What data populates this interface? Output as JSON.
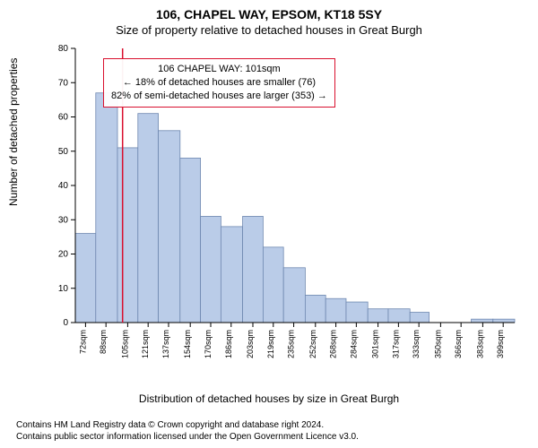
{
  "title_main": "106, CHAPEL WAY, EPSOM, KT18 5SY",
  "title_sub": "Size of property relative to detached houses in Great Burgh",
  "y_axis_label": "Number of detached properties",
  "x_axis_label": "Distribution of detached houses by size in Great Burgh",
  "footer_line1": "Contains HM Land Registry data © Crown copyright and database right 2024.",
  "footer_line2": "Contains public sector information licensed under the Open Government Licence v3.0.",
  "annotation": {
    "line1": "106 CHAPEL WAY: 101sqm",
    "line2": "← 18% of detached houses are smaller (76)",
    "line3": "82% of semi-detached houses are larger (353) →",
    "border_color": "#d9102e"
  },
  "reference_line": {
    "x_value": 101,
    "color": "#d9102e"
  },
  "chart": {
    "type": "histogram",
    "background_color": "#ffffff",
    "bar_fill": "#bacce8",
    "bar_stroke": "#6f88b0",
    "axis_color": "#000000",
    "tick_fontsize": 10,
    "x_tick_fontsize": 9,
    "xlim": [
      64,
      408
    ],
    "ylim": [
      0,
      80
    ],
    "y_ticks": [
      0,
      10,
      20,
      30,
      40,
      50,
      60,
      70,
      80
    ],
    "x_ticks": [
      72,
      88,
      105,
      121,
      137,
      154,
      170,
      186,
      203,
      219,
      235,
      252,
      268,
      284,
      301,
      317,
      333,
      350,
      366,
      383,
      399
    ],
    "x_tick_labels": [
      "72sqm",
      "88sqm",
      "105sqm",
      "121sqm",
      "137sqm",
      "154sqm",
      "170sqm",
      "186sqm",
      "203sqm",
      "219sqm",
      "235sqm",
      "252sqm",
      "268sqm",
      "284sqm",
      "301sqm",
      "317sqm",
      "333sqm",
      "350sqm",
      "366sqm",
      "383sqm",
      "399sqm"
    ],
    "bars": [
      {
        "x0": 64,
        "x1": 80,
        "y": 26
      },
      {
        "x0": 80,
        "x1": 97,
        "y": 67
      },
      {
        "x0": 97,
        "x1": 113,
        "y": 51
      },
      {
        "x0": 113,
        "x1": 129,
        "y": 61
      },
      {
        "x0": 129,
        "x1": 146,
        "y": 56
      },
      {
        "x0": 146,
        "x1": 162,
        "y": 48
      },
      {
        "x0": 162,
        "x1": 178,
        "y": 31
      },
      {
        "x0": 178,
        "x1": 195,
        "y": 28
      },
      {
        "x0": 195,
        "x1": 211,
        "y": 31
      },
      {
        "x0": 211,
        "x1": 227,
        "y": 22
      },
      {
        "x0": 227,
        "x1": 244,
        "y": 16
      },
      {
        "x0": 244,
        "x1": 260,
        "y": 8
      },
      {
        "x0": 260,
        "x1": 276,
        "y": 7
      },
      {
        "x0": 276,
        "x1": 293,
        "y": 6
      },
      {
        "x0": 293,
        "x1": 309,
        "y": 4
      },
      {
        "x0": 309,
        "x1": 326,
        "y": 4
      },
      {
        "x0": 326,
        "x1": 341,
        "y": 3
      },
      {
        "x0": 341,
        "x1": 358,
        "y": 0
      },
      {
        "x0": 358,
        "x1": 374,
        "y": 0
      },
      {
        "x0": 374,
        "x1": 391,
        "y": 1
      },
      {
        "x0": 391,
        "x1": 408,
        "y": 1
      }
    ]
  }
}
